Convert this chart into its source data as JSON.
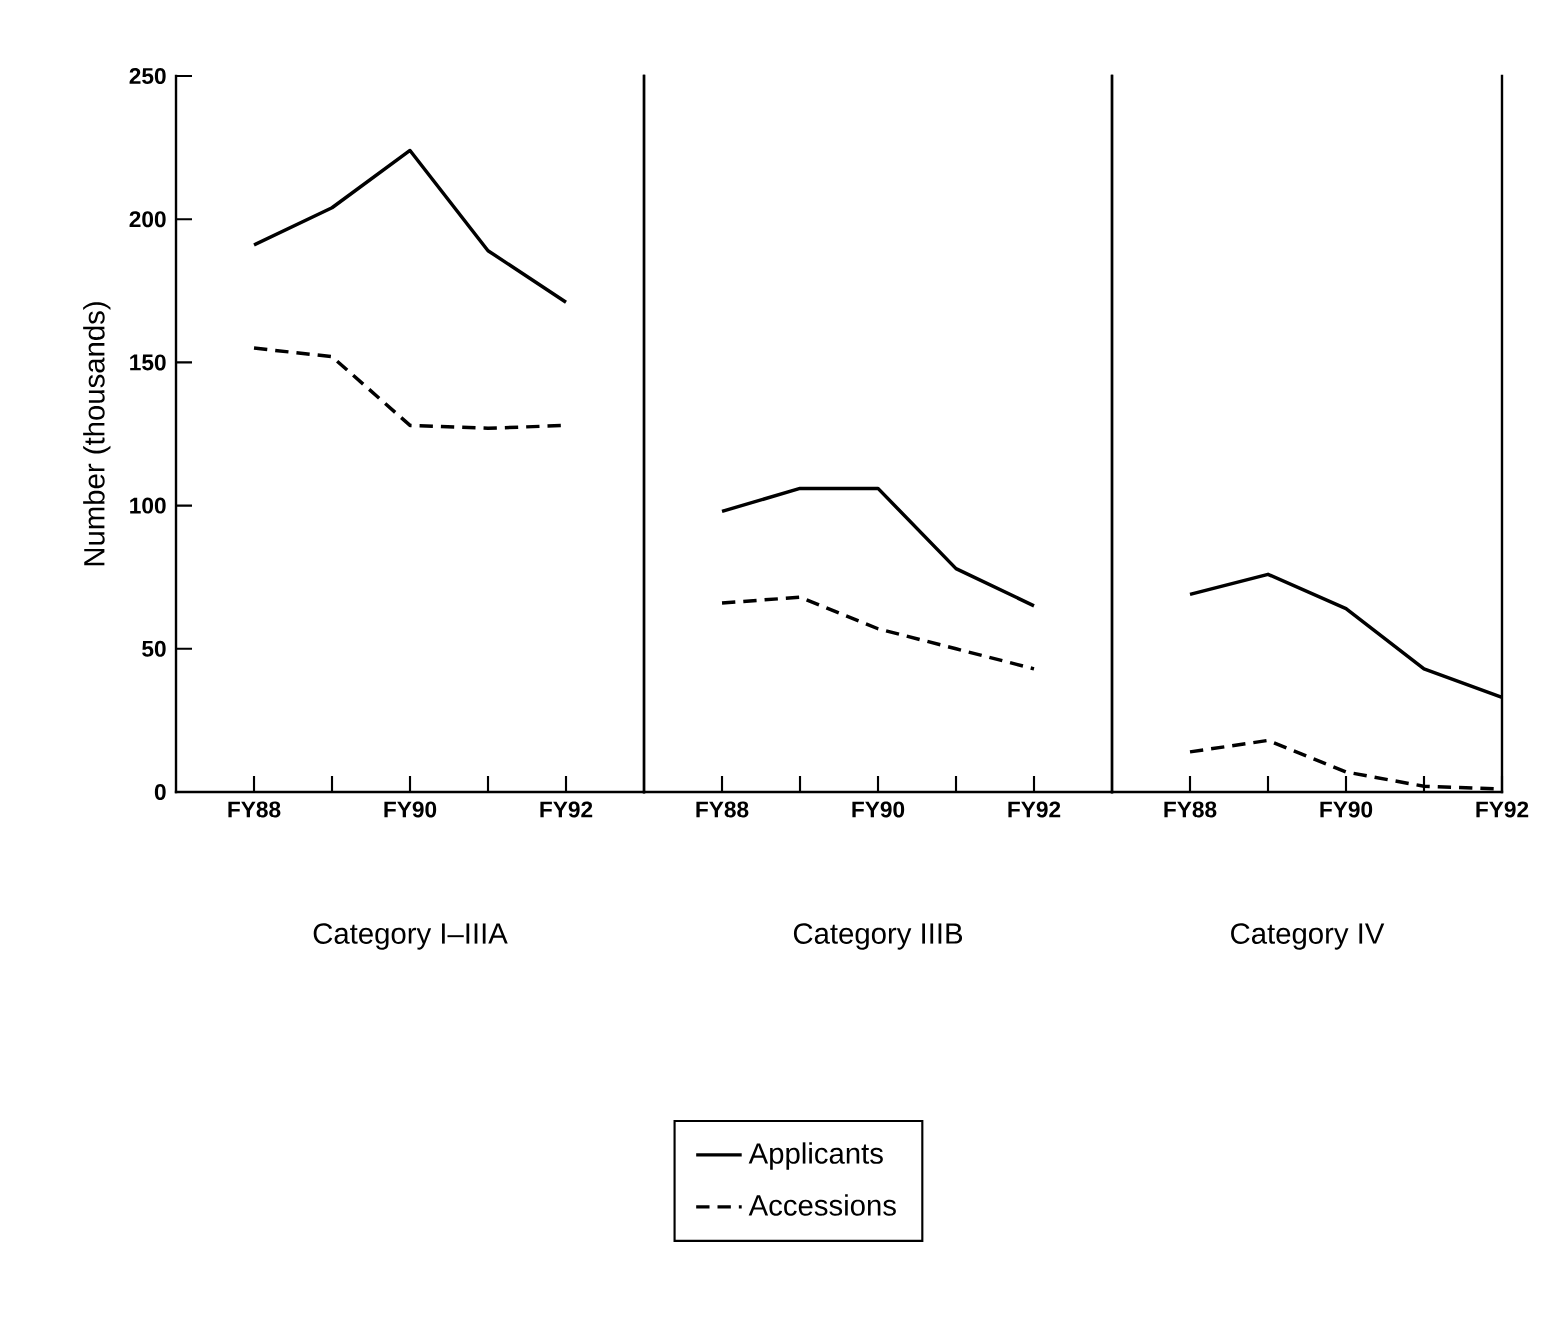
{
  "chart_data": [
    {
      "type": "line",
      "xlabel": "Category I–IIIA",
      "ylabel": "Number (thousands)",
      "categories": [
        "FY88",
        null,
        "FY90",
        null,
        "FY92"
      ],
      "ylim": [
        0,
        250
      ],
      "yticks": [
        0,
        50,
        100,
        150,
        200,
        250
      ],
      "series": [
        {
          "color": "#000000",
          "line_style": "solid",
          "values": [
            191,
            204,
            224,
            189,
            171
          ]
        },
        {
          "color": "#000000",
          "line_style": "dashed",
          "values": [
            155,
            152,
            128,
            127,
            128
          ]
        }
      ]
    },
    {
      "type": "line",
      "xlabel": "Category IIIB",
      "categories": [
        "FY88",
        null,
        "FY90",
        null,
        "FY92"
      ],
      "ylim": [
        0,
        250
      ],
      "yticks": [
        0,
        50,
        100,
        150,
        200,
        250
      ],
      "tick_labels": "x",
      "legend": "bottom",
      "series": [
        {
          "name": "Applicants",
          "color": "#000000",
          "line_style": "solid",
          "values": [
            98,
            106,
            106,
            78,
            65
          ]
        },
        {
          "name": "Accessions",
          "color": "#000000",
          "line_style": "dashed",
          "values": [
            66,
            68,
            57,
            50,
            43
          ]
        }
      ]
    },
    {
      "type": "line",
      "xlabel": "Category IV",
      "categories": [
        "FY88",
        null,
        "FY90",
        null,
        "FY92"
      ],
      "ylim": [
        0,
        250
      ],
      "yticks": [
        0,
        50,
        100,
        150,
        200,
        250
      ],
      "tick_labels": "x",
      "series": [
        {
          "color": "#000000",
          "line_style": "solid",
          "values": [
            69,
            76,
            64,
            43,
            33
          ]
        },
        {
          "color": "#000000",
          "line_style": "dashed",
          "values": [
            14,
            18,
            7,
            2,
            1
          ]
        }
      ]
    }
  ]
}
